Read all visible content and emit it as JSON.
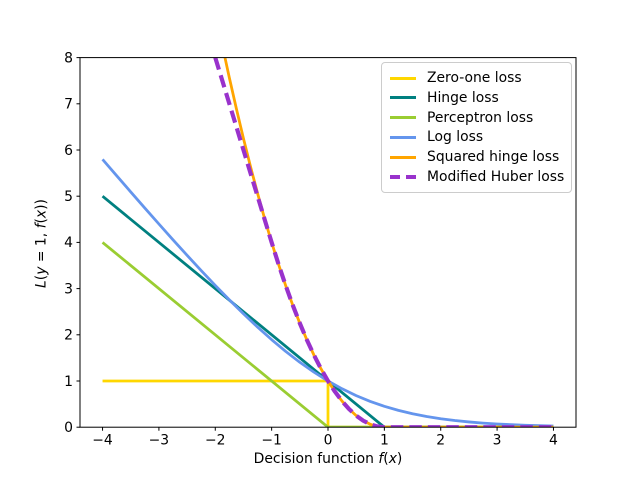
{
  "figure": {
    "background": "#ffffff"
  },
  "chart_data": {
    "type": "line",
    "title": "",
    "xlabel": "Decision function f(x)",
    "ylabel": "L(y = 1, f(x))",
    "xlabel_runs": [
      {
        "text": "Decision function ",
        "italic": false
      },
      {
        "text": "f",
        "italic": true
      },
      {
        "text": "(",
        "italic": false
      },
      {
        "text": "x",
        "italic": true
      },
      {
        "text": ")",
        "italic": false
      }
    ],
    "ylabel_runs": [
      {
        "text": "L",
        "italic": true
      },
      {
        "text": "(",
        "italic": false
      },
      {
        "text": "y",
        "italic": true
      },
      {
        "text": " = 1, ",
        "italic": false
      },
      {
        "text": "f",
        "italic": true
      },
      {
        "text": "(",
        "italic": false
      },
      {
        "text": "x",
        "italic": true
      },
      {
        "text": "))",
        "italic": false
      }
    ],
    "xlim": [
      -4.4,
      4.4
    ],
    "ylim": [
      0,
      8
    ],
    "xticks": [
      -4,
      -3,
      -2,
      -1,
      0,
      1,
      2,
      3,
      4
    ],
    "xtick_labels": [
      "−4",
      "−3",
      "−2",
      "−1",
      "0",
      "1",
      "2",
      "3",
      "4"
    ],
    "yticks": [
      0,
      1,
      2,
      3,
      4,
      5,
      6,
      7,
      8
    ],
    "ytick_labels": [
      "0",
      "1",
      "2",
      "3",
      "4",
      "5",
      "6",
      "7",
      "8"
    ],
    "grid": false,
    "legend_position": "upper right",
    "axis_color": "#000000",
    "series": [
      {
        "name": "Zero-one loss",
        "color": "#FFD700",
        "lw": 2,
        "dashed": false,
        "points": [
          [
            -4,
            1
          ],
          [
            0,
            1
          ],
          [
            0,
            0
          ],
          [
            4,
            0
          ]
        ]
      },
      {
        "name": "Hinge loss",
        "color": "#008080",
        "lw": 2,
        "dashed": false,
        "points": [
          [
            -4,
            5
          ],
          [
            1,
            0
          ],
          [
            4,
            0
          ]
        ]
      },
      {
        "name": "Perceptron loss",
        "color": "#9ACD32",
        "lw": 2,
        "dashed": false,
        "points": [
          [
            -4,
            4
          ],
          [
            0,
            0
          ],
          [
            4,
            0
          ]
        ]
      },
      {
        "name": "Log loss",
        "color": "#6495ED",
        "lw": 2,
        "dashed": false,
        "points": [
          [
            -4,
            5.797
          ],
          [
            -3.75,
            5.444
          ],
          [
            -3.5,
            5.092
          ],
          [
            -3.25,
            4.744
          ],
          [
            -3,
            4.398
          ],
          [
            -2.75,
            4.057
          ],
          [
            -2.5,
            3.721
          ],
          [
            -2.25,
            3.391
          ],
          [
            -2,
            3.069
          ],
          [
            -1.75,
            2.756
          ],
          [
            -1.5,
            2.455
          ],
          [
            -1.25,
            2.167
          ],
          [
            -1,
            1.895
          ],
          [
            -0.75,
            1.64
          ],
          [
            -0.5,
            1.405
          ],
          [
            -0.25,
            1.192
          ],
          [
            0,
            1
          ],
          [
            0.25,
            0.831
          ],
          [
            0.5,
            0.684
          ],
          [
            0.75,
            0.558
          ],
          [
            1,
            0.452
          ],
          [
            1.25,
            0.364
          ],
          [
            1.5,
            0.291
          ],
          [
            1.75,
            0.231
          ],
          [
            2,
            0.183
          ],
          [
            2.25,
            0.145
          ],
          [
            2.5,
            0.114
          ],
          [
            2.75,
            0.089
          ],
          [
            3,
            0.07
          ],
          [
            3.25,
            0.055
          ],
          [
            3.5,
            0.043
          ],
          [
            3.75,
            0.034
          ],
          [
            4,
            0.026
          ]
        ]
      },
      {
        "name": "Squared hinge loss",
        "color": "#FFA500",
        "lw": 2,
        "dashed": false,
        "points": [
          [
            -1.828,
            8
          ],
          [
            -1.75,
            7.563
          ],
          [
            -1.625,
            6.891
          ],
          [
            -1.5,
            6.25
          ],
          [
            -1.375,
            5.641
          ],
          [
            -1.25,
            5.063
          ],
          [
            -1.125,
            4.516
          ],
          [
            -1,
            4
          ],
          [
            -0.875,
            3.516
          ],
          [
            -0.75,
            3.063
          ],
          [
            -0.625,
            2.641
          ],
          [
            -0.5,
            2.25
          ],
          [
            -0.375,
            1.891
          ],
          [
            -0.25,
            1.563
          ],
          [
            -0.125,
            1.266
          ],
          [
            0,
            1
          ],
          [
            0.125,
            0.766
          ],
          [
            0.25,
            0.563
          ],
          [
            0.375,
            0.391
          ],
          [
            0.5,
            0.25
          ],
          [
            0.625,
            0.141
          ],
          [
            0.75,
            0.063
          ],
          [
            0.875,
            0.016
          ],
          [
            1,
            0
          ],
          [
            4,
            0
          ]
        ]
      },
      {
        "name": "Modified Huber loss",
        "color": "#9932CC",
        "lw": 3,
        "dashed": true,
        "points": [
          [
            -2,
            8
          ],
          [
            -1,
            4
          ],
          [
            -0.875,
            3.516
          ],
          [
            -0.75,
            3.063
          ],
          [
            -0.625,
            2.641
          ],
          [
            -0.5,
            2.25
          ],
          [
            -0.375,
            1.891
          ],
          [
            -0.25,
            1.563
          ],
          [
            -0.125,
            1.266
          ],
          [
            0,
            1
          ],
          [
            0.125,
            0.766
          ],
          [
            0.25,
            0.563
          ],
          [
            0.375,
            0.391
          ],
          [
            0.5,
            0.25
          ],
          [
            0.625,
            0.141
          ],
          [
            0.75,
            0.063
          ],
          [
            0.875,
            0.016
          ],
          [
            1,
            0
          ],
          [
            4,
            0
          ]
        ]
      }
    ]
  }
}
